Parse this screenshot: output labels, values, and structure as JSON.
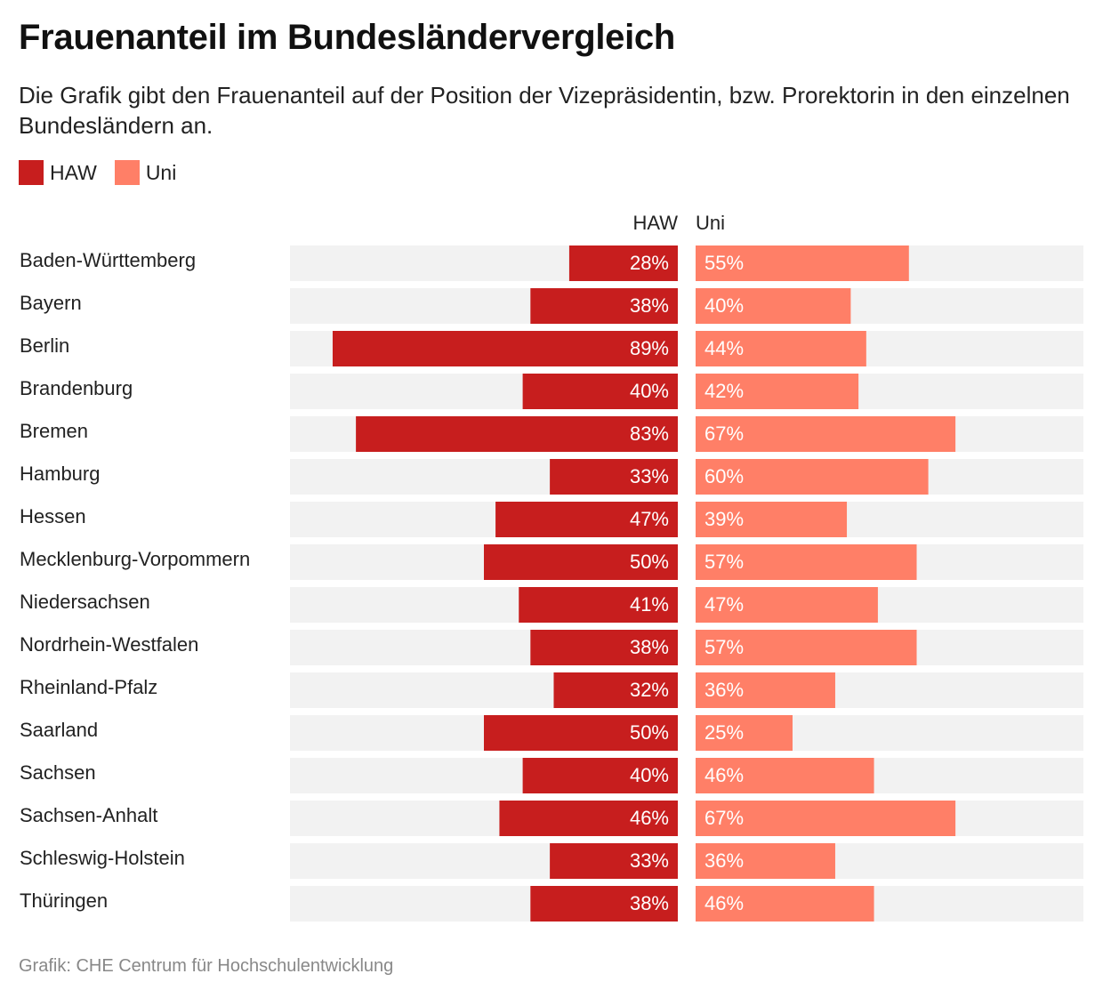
{
  "title": "Frauenanteil im Bundesländervergleich",
  "subtitle": "Die Grafik gibt den Frauenanteil auf der Position der Vizepräsidentin, bzw. Prorektorin in den einzelnen Bundesländern an.",
  "legend": [
    {
      "label": "HAW",
      "color": "#c71e1e"
    },
    {
      "label": "Uni",
      "color": "#ff7f67"
    }
  ],
  "source": "Grafik: CHE Centrum für Hochschulentwicklung",
  "chart_data": {
    "type": "bar",
    "orientation": "horizontal",
    "layout": "split (two panels, HAW left-extending, Uni right-extending)",
    "title": "Frauenanteil im Bundesländervergleich",
    "column_headers": [
      "HAW",
      "Uni"
    ],
    "value_suffix": "%",
    "xlim": [
      0,
      100
    ],
    "categories": [
      "Baden-Württemberg",
      "Bayern",
      "Berlin",
      "Brandenburg",
      "Bremen",
      "Hamburg",
      "Hessen",
      "Mecklenburg-Vorpommern",
      "Niedersachsen",
      "Nordrhein-Westfalen",
      "Rheinland-Pfalz",
      "Saarland",
      "Sachsen",
      "Sachsen-Anhalt",
      "Schleswig-Holstein",
      "Thüringen"
    ],
    "series": [
      {
        "name": "HAW",
        "color": "#c71e1e",
        "values": [
          28,
          38,
          89,
          40,
          83,
          33,
          47,
          50,
          41,
          38,
          32,
          50,
          40,
          46,
          33,
          38
        ]
      },
      {
        "name": "Uni",
        "color": "#ff7f67",
        "values": [
          55,
          40,
          44,
          42,
          67,
          60,
          39,
          57,
          47,
          57,
          36,
          25,
          46,
          67,
          36,
          46
        ]
      }
    ],
    "background_track_color": "#f2f2f2"
  }
}
